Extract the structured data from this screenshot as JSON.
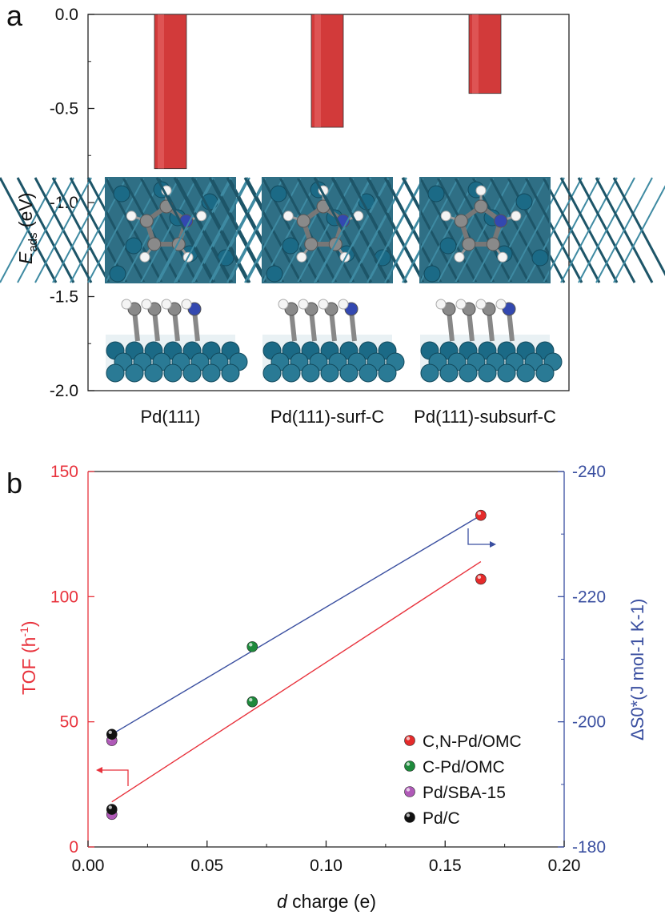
{
  "panel_labels": {
    "a": "a",
    "b": "b"
  },
  "chart_data": [
    {
      "type": "bar",
      "panel": "a",
      "categories": [
        "Pd(111)",
        "Pd(111)-surf-C",
        "Pd(111)-subsurf-C"
      ],
      "values": [
        -0.82,
        -0.6,
        -0.42
      ],
      "ylabel_main": "E",
      "ylabel_sub": "ads",
      "ylabel_unit": " (eV)",
      "ylim": [
        -2.0,
        0.0
      ],
      "yticks": [
        "0.0",
        "-0.5",
        "-1.0",
        "-1.5",
        "-2.0"
      ],
      "ytick_values": [
        0.0,
        -0.5,
        -1.0,
        -1.5,
        -2.0
      ],
      "bar_color": "#d23a3a",
      "insets": [
        "Pd(111) top and side view of adsorbed pyrrole",
        "Pd(111)-surf-C top and side view",
        "Pd(111)-subsurf-C top and side view"
      ]
    },
    {
      "type": "scatter",
      "panel": "b",
      "xlabel_italic": "d",
      "xlabel_rest": " charge (e)",
      "xlim": [
        0.0,
        0.2
      ],
      "xticks": [
        "0.00",
        "0.05",
        "0.10",
        "0.15",
        "0.20"
      ],
      "xtick_values": [
        0.0,
        0.05,
        0.1,
        0.15,
        0.2
      ],
      "left_axis": {
        "label_main": "TOF (h",
        "label_sup": "-1",
        "label_end": ")",
        "ylim": [
          0,
          150
        ],
        "yticks": [
          "0",
          "50",
          "100",
          "150"
        ],
        "ytick_values": [
          0,
          50,
          100,
          150
        ],
        "color": "#e8323c"
      },
      "right_axis": {
        "label": "ΔS0*(J mol-1 K-1)",
        "ylim": [
          -180,
          -240
        ],
        "yticks": [
          "-180",
          "-200",
          "-220",
          "-240"
        ],
        "ytick_values": [
          -180,
          -200,
          -220,
          -240
        ],
        "color": "#3a4fa0"
      },
      "series": [
        {
          "name": "C,N-Pd/OMC",
          "color": "#e52b2b",
          "tof": [
            107
          ],
          "ds": [
            -233
          ],
          "x": [
            0.165
          ]
        },
        {
          "name": "C-Pd/OMC",
          "color": "#1e8a3c",
          "tof": [
            58
          ],
          "ds": [
            -212
          ],
          "x": [
            0.069
          ]
        },
        {
          "name": "Pd/SBA-15",
          "color": "#b05ab8",
          "tof": [
            13
          ],
          "ds": [
            -197
          ],
          "x": [
            0.01
          ]
        },
        {
          "name": "Pd/C",
          "color": "#111111",
          "tof": [
            15
          ],
          "ds": [
            -198
          ],
          "x": [
            0.01
          ]
        }
      ],
      "fit_lines": {
        "tof": {
          "x": [
            0.01,
            0.165
          ],
          "y": [
            18,
            114
          ],
          "color": "#e8323c"
        },
        "ds": {
          "x": [
            0.01,
            0.165
          ],
          "y": [
            -198,
            -233
          ],
          "color": "#3a4fa0"
        }
      },
      "legend_position": "bottom-right"
    }
  ]
}
